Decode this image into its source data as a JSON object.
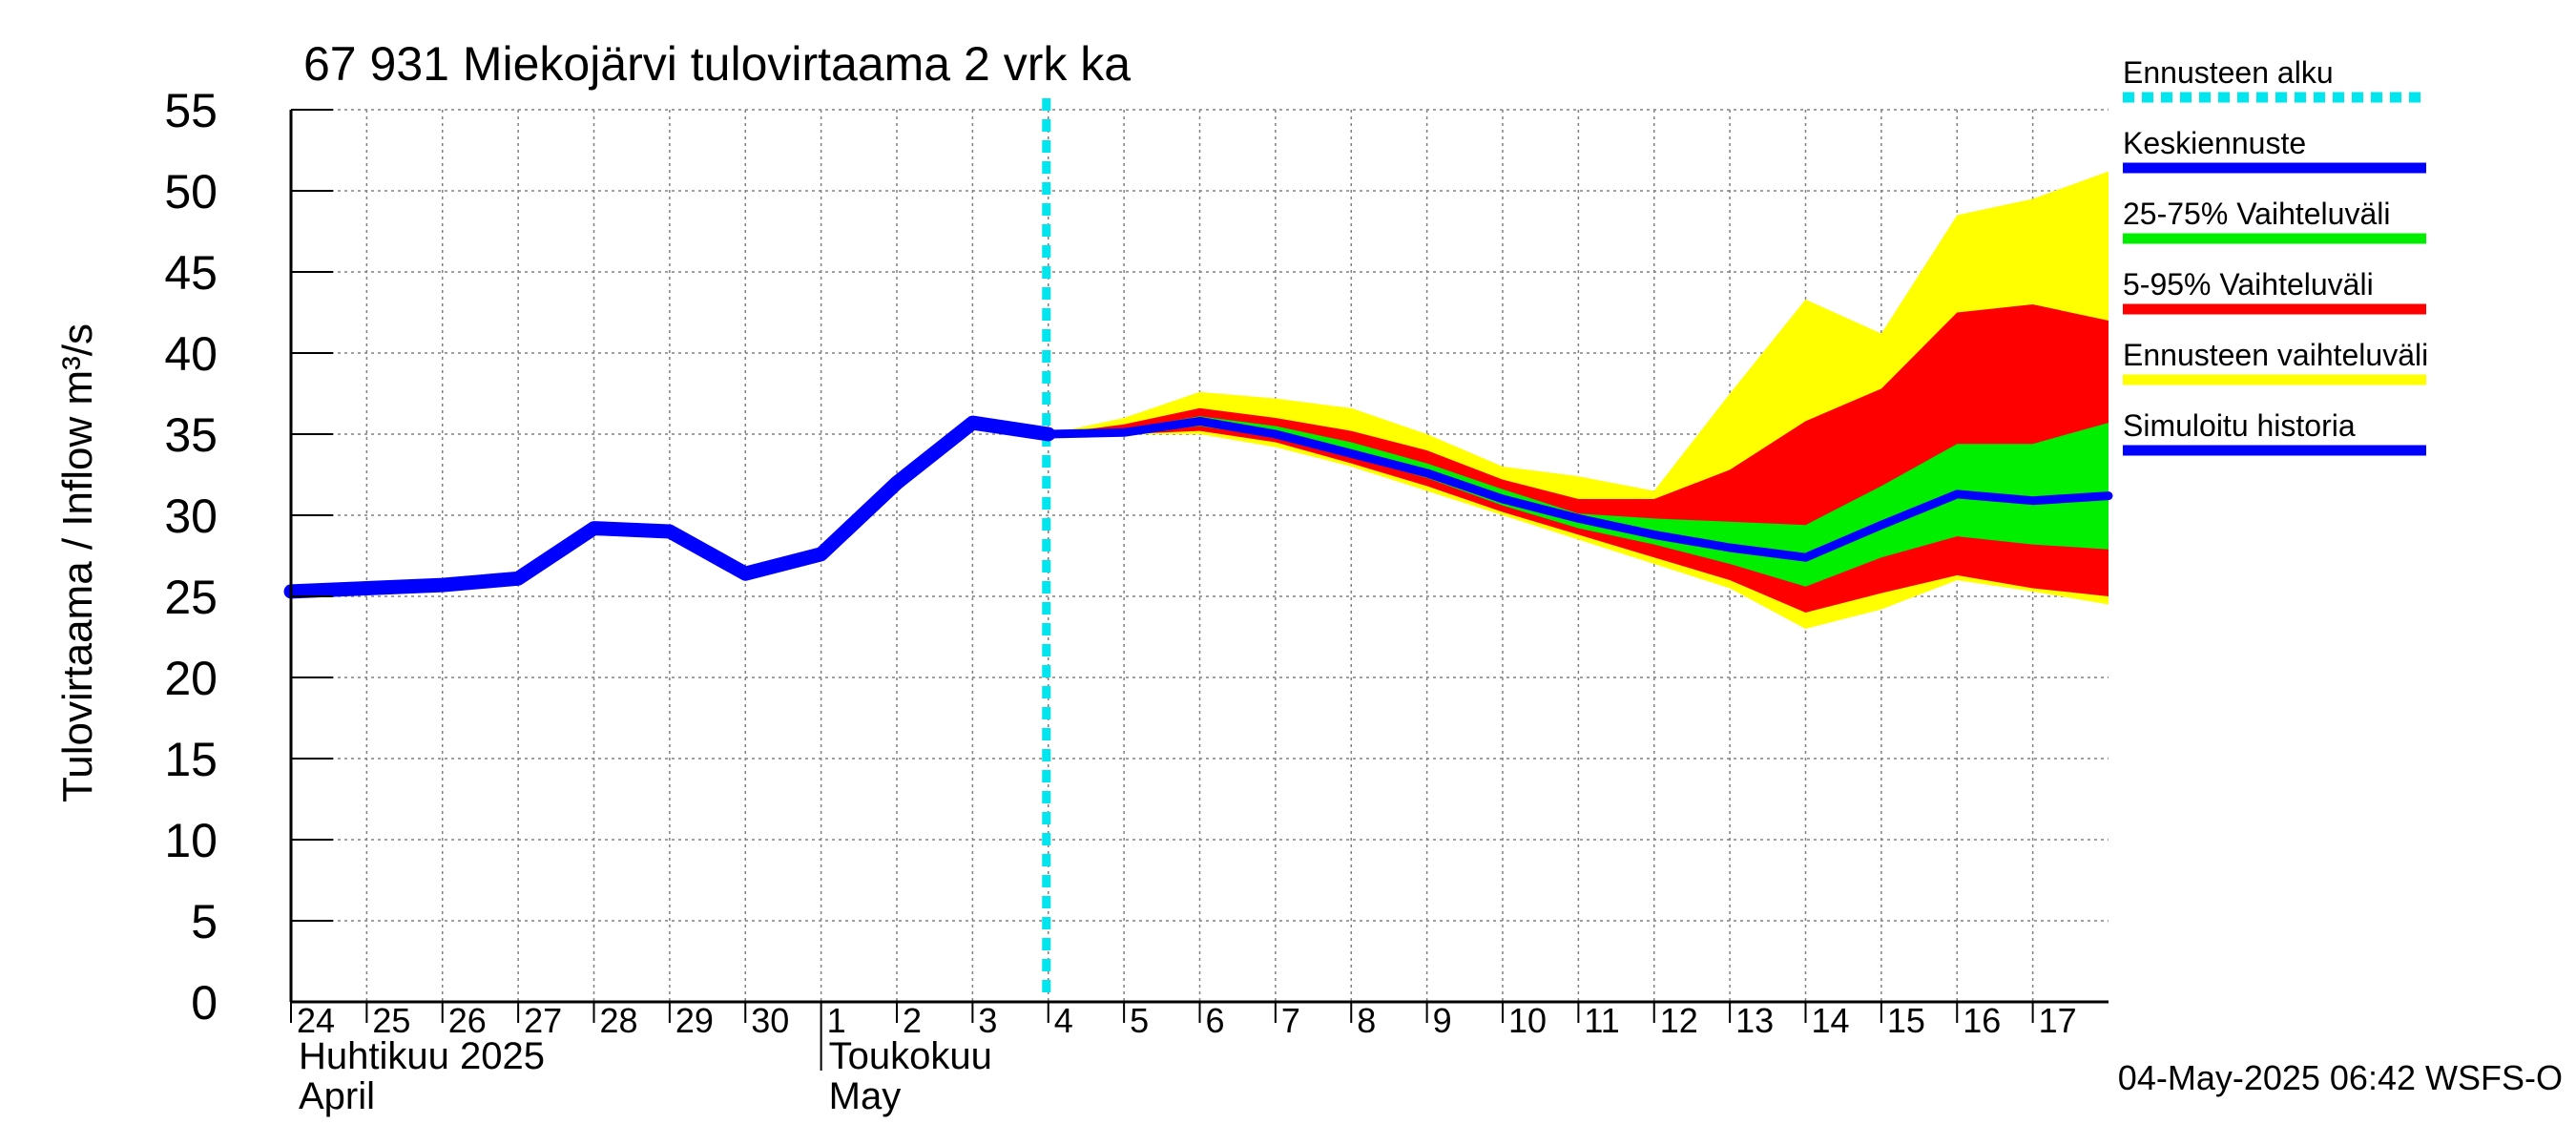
{
  "chart_data": {
    "type": "area",
    "title": "67 931 Miekojärvi tulovirtaama 2 vrk ka",
    "ylabel": "Tulovirtaama / Inflow    m³/s",
    "ylim": [
      0,
      55
    ],
    "yticks": [
      0,
      5,
      10,
      15,
      20,
      25,
      30,
      35,
      40,
      45,
      50,
      55
    ],
    "xlim": [
      0,
      24
    ],
    "x_day_labels": [
      "24",
      "25",
      "26",
      "27",
      "28",
      "29",
      "30",
      "1",
      "2",
      "3",
      "4",
      "5",
      "6",
      "7",
      "8",
      "9",
      "10",
      "11",
      "12",
      "13",
      "14",
      "15",
      "16",
      "17"
    ],
    "month_labels": [
      {
        "line1": "Huhtikuu  2025",
        "line2": "April"
      },
      {
        "line1": "Toukokuu",
        "line2": "May"
      }
    ],
    "grid": true,
    "forecast_start": 10.0,
    "history": {
      "name": "Simuloitu historia",
      "x": [
        0,
        1,
        2,
        3,
        4,
        5,
        6,
        7,
        8,
        9,
        10
      ],
      "y": [
        25.3,
        25.5,
        25.7,
        26.1,
        29.2,
        29.0,
        26.4,
        27.6,
        32.0,
        35.7,
        35.0
      ]
    },
    "forecast_x": [
      10,
      11,
      12,
      13,
      14,
      15,
      16,
      17,
      18,
      19,
      20,
      21,
      22,
      23,
      24
    ],
    "bands": {
      "full": {
        "name": "Ennusteen vaihteluväli",
        "lower": [
          35.0,
          35.0,
          35.0,
          34.2,
          33.0,
          31.5,
          30.0,
          28.5,
          27.0,
          25.5,
          23.0,
          24.2,
          26.0,
          25.3,
          24.5
        ],
        "upper": [
          35.0,
          36.0,
          37.6,
          37.2,
          36.6,
          35.0,
          33.0,
          32.4,
          31.5,
          37.5,
          43.3,
          41.2,
          48.5,
          49.5,
          51.2
        ]
      },
      "p5_95": {
        "name": "5-95% Vaihteluväli",
        "lower": [
          35.0,
          35.0,
          35.2,
          34.5,
          33.2,
          31.8,
          30.2,
          28.8,
          27.4,
          26.0,
          24.0,
          25.2,
          26.3,
          25.5,
          25.0
        ],
        "upper": [
          35.0,
          35.6,
          36.6,
          36.0,
          35.2,
          34.0,
          32.2,
          31.0,
          31.0,
          32.8,
          35.8,
          37.8,
          42.5,
          43.0,
          42.0
        ]
      },
      "p25_75": {
        "name": "25-75% Vaihteluväli",
        "lower": [
          35.0,
          35.0,
          35.5,
          34.8,
          33.6,
          32.3,
          30.6,
          29.2,
          28.2,
          27.0,
          25.6,
          27.4,
          28.7,
          28.2,
          27.9
        ],
        "upper": [
          35.0,
          35.3,
          36.1,
          35.5,
          34.5,
          33.2,
          31.6,
          30.1,
          29.8,
          29.6,
          29.4,
          31.8,
          34.4,
          34.4,
          35.7
        ]
      }
    },
    "mean_forecast": {
      "name": "Keskiennuste",
      "y": [
        35.0,
        35.1,
        35.8,
        35.0,
        33.8,
        32.6,
        31.0,
        29.8,
        28.8,
        28.0,
        27.4,
        29.4,
        31.3,
        30.9,
        31.2
      ]
    },
    "legend": {
      "placement": "right",
      "items": [
        {
          "label": "Ennusteen alku",
          "color": "#00e5ee",
          "style": "dotted"
        },
        {
          "label": "Keskiennuste",
          "color": "#0000ff",
          "style": "line"
        },
        {
          "label": "25-75% Vaihteluväli",
          "color": "#00ee00",
          "style": "line"
        },
        {
          "label": "5-95% Vaihteluväli",
          "color": "#ff0000",
          "style": "line"
        },
        {
          "label": "Ennusteen vaihteluväli",
          "color": "#ffff00",
          "style": "line"
        },
        {
          "label": "Simuloitu historia",
          "color": "#0000ff",
          "style": "line"
        }
      ]
    },
    "colors": {
      "full": "#ffff00",
      "p5_95": "#ff0000",
      "p25_75": "#00ee00",
      "line": "#0000ff",
      "forecast_start": "#00e5ee",
      "grid": "#808080"
    },
    "footer": "04-May-2025 06:42 WSFS-O"
  }
}
